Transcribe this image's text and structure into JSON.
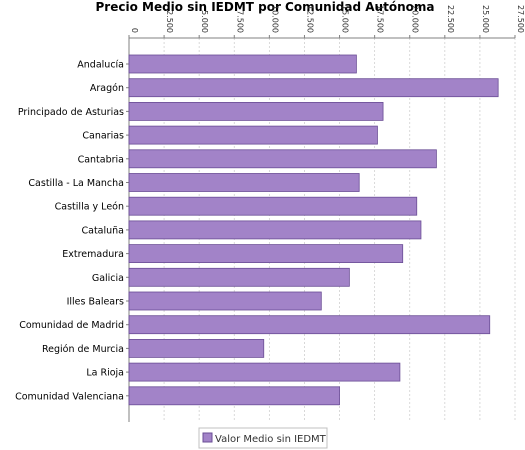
{
  "chart_data": {
    "type": "bar",
    "orientation": "horizontal",
    "title": "Precio Medio sin IEDMT por Comunidad Autónoma",
    "xlabel": "",
    "ylabel": "",
    "xlim": [
      0,
      27500
    ],
    "x_ticks": [
      0,
      2500,
      5000,
      7500,
      10000,
      12500,
      15000,
      17500,
      20000,
      22500,
      25000,
      27500
    ],
    "x_tick_labels": [
      "0",
      "2.500",
      "5.000",
      "7.500",
      "10.000",
      "12.500",
      "15.000",
      "17.500",
      "20.000",
      "22.500",
      "25.000",
      "27.500"
    ],
    "x_axis_position": "top",
    "grid": true,
    "categories": [
      "Andalucía",
      "Aragón",
      "Principado de Asturias",
      "Canarias",
      "Cantabria",
      "Castilla - La Mancha",
      "Castilla y León",
      "Cataluña",
      "Extremadura",
      "Galicia",
      "Illes Balears",
      "Comunidad de Madrid",
      "Región de Murcia",
      "La Rioja",
      "Comunidad Valenciana"
    ],
    "series": [
      {
        "name": "Valor Medio sin IEDMT",
        "color": "#a283c8",
        "values": [
          16200,
          26300,
          18100,
          17700,
          21900,
          16400,
          20500,
          20800,
          19500,
          15700,
          13700,
          25700,
          9600,
          19300,
          15000
        ]
      }
    ],
    "legend_position": "bottom"
  },
  "colors": {
    "bar_fill": "#a283c8",
    "bar_stroke": "#6a4d95",
    "grid": "#d0d0d0",
    "axis": "#808080"
  }
}
